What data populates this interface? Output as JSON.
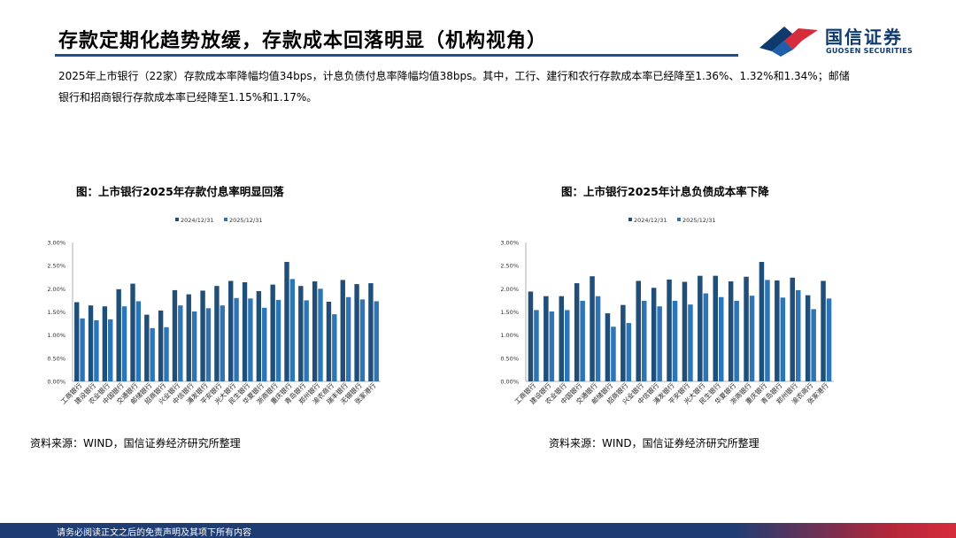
{
  "header": {
    "title": "存款定期化趋势放缓，存款成本回落明显（机构视角）",
    "logo_cn": "国信证券",
    "logo_en": "GUOSEN SECURITIES"
  },
  "intro": "2025年上市银行（22家）存款成本率降幅均值34bps，计息负债付息率降幅均值38bps。其中，工行、建行和农行存款成本率已经降至1.36%、1.32%和1.34%；邮储银行和招商银行存款成本率已经降至1.15%和1.17%。",
  "footer": {
    "disclaimer": "请务必阅读正文之后的免责声明及其项下所有内容"
  },
  "colors": {
    "series1": "#1f4e79",
    "series2": "#2e75b6",
    "title_rule": "#1f4e8c",
    "footer": "#1f3d73"
  },
  "chart_data": [
    {
      "type": "bar",
      "title": "图：上市银行2025年存款付息率明显回落",
      "source": "资料来源：WIND，国信证券经济研究所整理",
      "categories": [
        "工商银行",
        "建设银行",
        "农业银行",
        "中国银行",
        "交通银行",
        "邮储银行",
        "招商银行",
        "兴业银行",
        "中信银行",
        "浦发银行",
        "平安银行",
        "光大银行",
        "民生银行",
        "华夏银行",
        "浙商银行",
        "重庆银行",
        "青岛银行",
        "郑州银行",
        "渝农商行",
        "瑞丰银行",
        "无锡银行",
        "张家港行"
      ],
      "series": [
        {
          "name": "2024/12/31",
          "values": [
            1.71,
            1.64,
            1.62,
            1.99,
            2.11,
            1.44,
            1.53,
            1.97,
            1.88,
            1.96,
            2.06,
            2.17,
            2.14,
            1.95,
            2.09,
            2.58,
            2.06,
            2.16,
            1.72,
            2.19,
            2.1,
            2.12
          ]
        },
        {
          "name": "2025/12/31",
          "values": [
            1.36,
            1.32,
            1.34,
            1.62,
            1.73,
            1.15,
            1.17,
            1.64,
            1.51,
            1.58,
            1.64,
            1.8,
            1.79,
            1.59,
            1.76,
            2.21,
            1.75,
            2.0,
            1.45,
            1.82,
            1.77,
            1.73
          ]
        }
      ],
      "ylim": [
        0,
        3.0
      ],
      "yticks": [
        "3.00%",
        "2.50%",
        "2.00%",
        "1.50%",
        "1.00%",
        "0.50%",
        "0.00%"
      ],
      "legend": "top-center"
    },
    {
      "type": "bar",
      "title": "图：上市银行2025年计息负债成本率下降",
      "source": "资料来源：WIND，国信证券经济研究所整理",
      "categories": [
        "工商银行",
        "建设银行",
        "农业银行",
        "中国银行",
        "交通银行",
        "邮储银行",
        "招商银行",
        "兴业银行",
        "中信银行",
        "浦发银行",
        "平安银行",
        "光大银行",
        "民生银行",
        "华夏银行",
        "浙商银行",
        "重庆银行",
        "青岛银行",
        "郑州银行",
        "渝农商行",
        "张家港行"
      ],
      "series": [
        {
          "name": "2024/12/31",
          "values": [
            1.94,
            1.84,
            1.84,
            2.12,
            2.27,
            1.47,
            1.65,
            2.17,
            2.02,
            2.2,
            2.15,
            2.28,
            2.28,
            2.16,
            2.26,
            2.58,
            2.18,
            2.24,
            1.86,
            2.17
          ]
        },
        {
          "name": "2025/12/31",
          "values": [
            1.54,
            1.51,
            1.54,
            1.74,
            1.84,
            1.18,
            1.26,
            1.74,
            1.62,
            1.74,
            1.66,
            1.9,
            1.82,
            1.74,
            1.85,
            2.19,
            1.81,
            1.97,
            1.56,
            1.79
          ]
        }
      ],
      "ylim": [
        0,
        3.0
      ],
      "yticks": [
        "3.00%",
        "2.50%",
        "2.00%",
        "1.50%",
        "1.00%",
        "0.50%",
        "0.00%"
      ],
      "legend": "top-center"
    }
  ]
}
